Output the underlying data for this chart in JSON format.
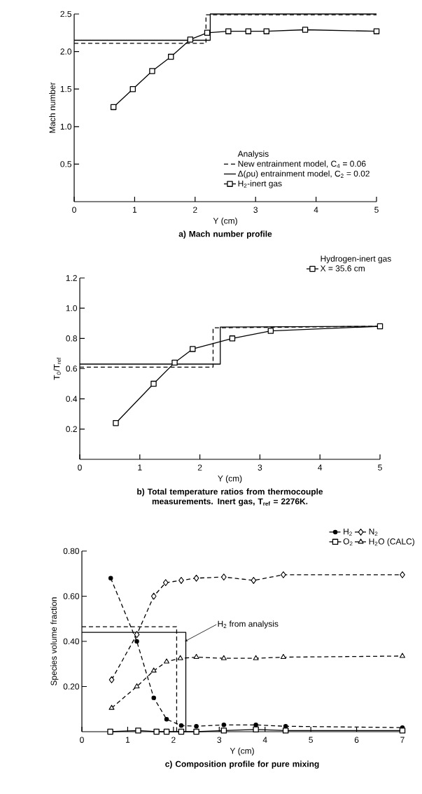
{
  "chart_data": [
    {
      "type": "line",
      "title": "a)  Mach number profile",
      "xlabel": "Y (cm)",
      "ylabel": "Mach number",
      "legend_title": "Analysis",
      "legend": "bottom right",
      "xlim": [
        0,
        5
      ],
      "ylim": [
        0,
        2.5
      ],
      "xticks": [
        0,
        1,
        2,
        3,
        4,
        5
      ],
      "yticks": [
        {
          "value": 0.5,
          "label": "0.5"
        },
        {
          "value": 1.0,
          "label": "1.0"
        },
        {
          "value": 1.5,
          "label": "1.5"
        },
        {
          "value": 2.0,
          "label": "2.0"
        },
        {
          "value": 2.5,
          "label": "2.5"
        }
      ],
      "series": [
        {
          "name": "New entrainment model, C$_{4}$ = 0.06",
          "color": "#000000",
          "line_style": "dashed",
          "marker": "none",
          "x": [
            0,
            2.18,
            2.18,
            5
          ],
          "values": [
            2.11,
            2.11,
            2.49,
            2.49
          ]
        },
        {
          "name": "Δ(ρu) entrainment model, C$_{2}$ = 0.02",
          "color": "#000000",
          "line_style": "solid",
          "marker": "none",
          "x": [
            0,
            2.25,
            2.25,
            5
          ],
          "values": [
            2.15,
            2.15,
            2.5,
            2.5
          ]
        },
        {
          "name": "H$_{2}$-inert gas",
          "color": "#000000",
          "line_style": "solid",
          "marker": "square",
          "x": [
            0.65,
            0.97,
            1.29,
            1.6,
            1.92,
            2.2,
            2.55,
            2.88,
            3.18,
            3.82,
            5.0
          ],
          "values": [
            1.26,
            1.5,
            1.74,
            1.93,
            2.16,
            2.25,
            2.27,
            2.27,
            2.27,
            2.29,
            2.27
          ]
        }
      ]
    },
    {
      "type": "line",
      "title": "b)  Total temperature ratios from thermocouple measurements. Inert gas, T$_{ref}$ = 2276K.",
      "xlabel": "Y (cm)",
      "ylabel": "T$_{0}$/T$_{ref}$",
      "legend_title": "Hydrogen-inert gas",
      "legend": "top right",
      "xlim": [
        0,
        5
      ],
      "ylim": [
        0,
        1.2
      ],
      "xticks": [
        0,
        1,
        2,
        3,
        4,
        5
      ],
      "yticks": [
        0.2,
        0.4,
        0.6,
        0.8,
        {
          "value": 1.0,
          "label": "1.0"
        },
        1.2
      ],
      "series": [
        {
          "color": "#000000",
          "line_style": "dashed",
          "marker": "none",
          "x": [
            0,
            2.22,
            2.22,
            5
          ],
          "values": [
            0.61,
            0.61,
            0.87,
            0.88
          ]
        },
        {
          "color": "#000000",
          "line_style": "solid",
          "marker": "none",
          "x": [
            0,
            2.34,
            2.34,
            5
          ],
          "values": [
            0.63,
            0.63,
            0.875,
            0.88
          ]
        },
        {
          "name": "X = 35.6 cm",
          "color": "#000000",
          "line_style": "solid",
          "marker": "square",
          "x": [
            0.6,
            1.23,
            1.58,
            1.88,
            2.54,
            3.18,
            5.0
          ],
          "values": [
            0.24,
            0.5,
            0.64,
            0.73,
            0.8,
            0.85,
            0.88
          ]
        }
      ]
    },
    {
      "type": "line",
      "title": "c)  Composition profile for pure mixing",
      "xlabel": "Y (cm)",
      "ylabel": "Species volume fraction",
      "legend": "top right",
      "annotations": [
        {
          "text": "H$_{2}$ from analysis",
          "x": 2.25,
          "y": 0.4
        }
      ],
      "xlim": [
        0,
        7
      ],
      "ylim": [
        0,
        0.8
      ],
      "xticks": [
        0,
        1,
        2,
        3,
        4,
        5,
        6,
        7
      ],
      "yticks": [
        {
          "value": 0.2,
          "label": "0.20"
        },
        {
          "value": 0.4,
          "label": "0.40"
        },
        {
          "value": 0.6,
          "label": "0.60"
        },
        {
          "value": 0.8,
          "label": "0.80"
        }
      ],
      "series": [
        {
          "name": "H$_{2}$",
          "color": "#000000",
          "line_style": "dashed",
          "marker": "circle",
          "x": [
            0.63,
            1.2,
            1.57,
            1.85,
            2.17,
            2.5,
            3.1,
            3.8,
            4.45,
            7.0
          ],
          "values": [
            0.68,
            0.4,
            0.15,
            0.055,
            0.027,
            0.024,
            0.03,
            0.03,
            0.024,
            0.018
          ]
        },
        {
          "name": "N$_{2}$",
          "color": "#000000",
          "line_style": "dashed",
          "marker": "diamond",
          "x": [
            0.65,
            1.2,
            1.57,
            1.83,
            2.17,
            2.5,
            3.1,
            3.75,
            4.4,
            7.0
          ],
          "values": [
            0.23,
            0.43,
            0.6,
            0.66,
            0.67,
            0.68,
            0.685,
            0.67,
            0.695,
            0.695
          ]
        },
        {
          "name": "O$_{2}$",
          "color": "#000000",
          "line_style": "solid",
          "marker": "square",
          "x": [
            0.62,
            1.23,
            1.63,
            1.85,
            2.17,
            2.5,
            3.1,
            3.8,
            4.45,
            7.0
          ],
          "values": [
            0.0,
            0.005,
            0.0,
            0.0,
            0.0,
            0.0,
            0.005,
            0.01,
            0.005,
            0.005
          ]
        },
        {
          "name": "H$_{2}$O (CALC)",
          "color": "#000000",
          "line_style": "dashed",
          "marker": "triangle",
          "x": [
            0.65,
            1.2,
            1.57,
            1.85,
            2.15,
            2.5,
            3.1,
            3.8,
            4.4,
            7.0
          ],
          "values": [
            0.105,
            0.2,
            0.27,
            0.31,
            0.325,
            0.33,
            0.325,
            0.325,
            0.33,
            0.335
          ]
        },
        {
          "color": "#000000",
          "line_style": "dashed",
          "marker": "none",
          "x": [
            0,
            2.07,
            2.07
          ],
          "values": [
            0.465,
            0.465,
            0.0
          ]
        },
        {
          "color": "#000000",
          "line_style": "solid",
          "marker": "none",
          "x": [
            0,
            2.27,
            2.27
          ],
          "values": [
            0.44,
            0.44,
            0.0
          ]
        }
      ]
    }
  ]
}
